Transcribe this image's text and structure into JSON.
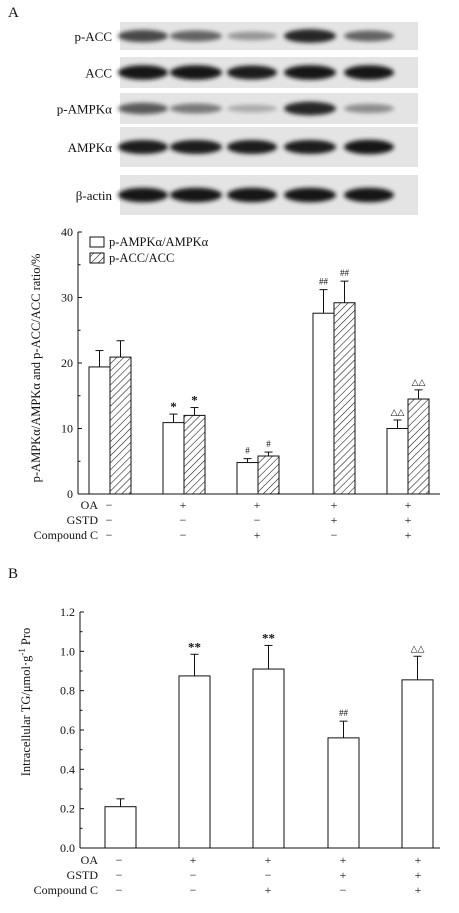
{
  "panel_a": {
    "label": "A",
    "blot": {
      "rows": [
        {
          "name": "p-ACC",
          "intensities": [
            0.7,
            0.55,
            0.3,
            0.85,
            0.55
          ]
        },
        {
          "name": "ACC",
          "intensities": [
            0.95,
            0.95,
            0.9,
            0.95,
            0.95
          ]
        },
        {
          "name": "p-AMPKα",
          "intensities": [
            0.6,
            0.45,
            0.2,
            0.85,
            0.35
          ]
        },
        {
          "name": "AMPKα",
          "intensities": [
            0.9,
            0.9,
            0.9,
            0.9,
            0.95
          ]
        },
        {
          "name": "β-actin",
          "intensities": [
            0.95,
            0.95,
            0.95,
            0.95,
            0.95
          ]
        }
      ]
    }
  },
  "panel_b": {
    "label": "B"
  },
  "treatments": {
    "labels": [
      "OA",
      "GSTD",
      "Compound C"
    ],
    "signs": [
      [
        "−",
        "+",
        "+",
        "+",
        "+"
      ],
      [
        "−",
        "−",
        "−",
        "+",
        "+"
      ],
      [
        "−",
        "−",
        "+",
        "−",
        "+"
      ]
    ]
  },
  "chart_data": [
    {
      "type": "bar",
      "categories": [
        "1",
        "2",
        "3",
        "4",
        "5"
      ],
      "ylabel": "p-AMPKα/AMPKα and p-ACC/ACC ratio/%",
      "ylim": [
        0,
        40
      ],
      "yticks": [
        0,
        10,
        20,
        30,
        40
      ],
      "legend_position": "top-left",
      "series": [
        {
          "name": "p-AMPKα/AMPKα",
          "pattern": "open",
          "values": [
            19.4,
            10.9,
            4.8,
            27.6,
            10.0
          ],
          "errors": [
            2.5,
            1.3,
            0.6,
            3.6,
            1.3
          ],
          "markers": [
            "",
            "*",
            "#",
            "##",
            "△△"
          ]
        },
        {
          "name": "p-ACC/ACC",
          "pattern": "hatched",
          "values": [
            20.9,
            12.0,
            5.8,
            29.2,
            14.5
          ],
          "errors": [
            2.5,
            1.2,
            0.6,
            3.3,
            1.4
          ],
          "markers": [
            "",
            "*",
            "#",
            "##",
            "△△"
          ]
        }
      ]
    },
    {
      "type": "bar",
      "categories": [
        "1",
        "2",
        "3",
        "4",
        "5"
      ],
      "ylabel_main": "Intracellular TG/μmol·g",
      "ylabel_sup": "-1",
      "ylabel_tail": "Pro",
      "ylim": [
        0,
        1.2
      ],
      "yticks": [
        "0.0",
        "0.2",
        "0.4",
        "0.6",
        "0.8",
        "1.0",
        "1.2"
      ],
      "series": [
        {
          "pattern": "open",
          "values": [
            0.21,
            0.875,
            0.91,
            0.56,
            0.855
          ],
          "errors": [
            0.04,
            0.11,
            0.12,
            0.085,
            0.12
          ],
          "markers": [
            "",
            "**",
            "**",
            "##",
            "△△"
          ]
        }
      ]
    }
  ]
}
